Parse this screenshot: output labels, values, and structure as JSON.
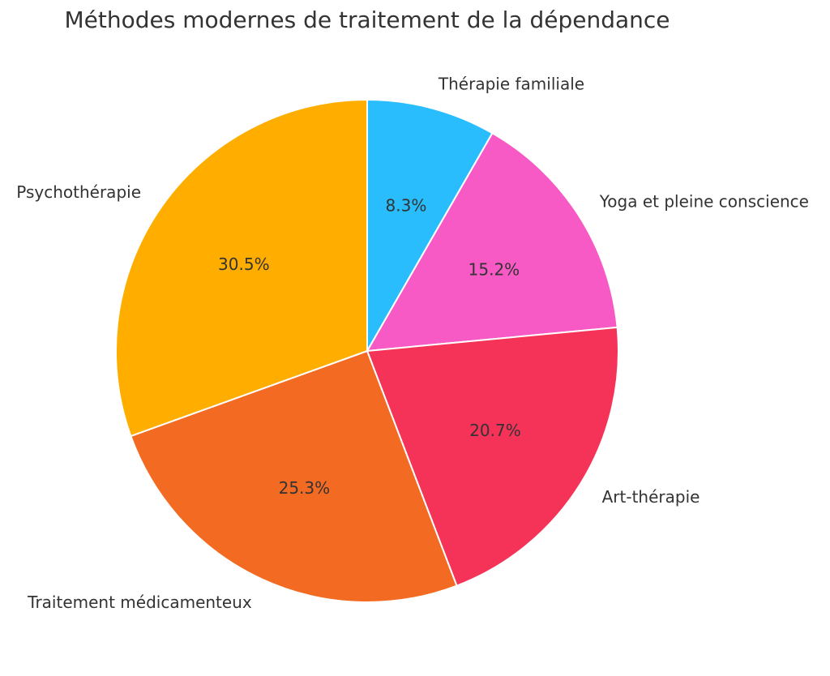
{
  "chart_data": {
    "type": "pie",
    "title": "Méthodes modernes de traitement de la dépendance",
    "start_angle_deg": 90,
    "direction": "clockwise",
    "slices": [
      {
        "label": "Thérapie familiale",
        "value": 8.3,
        "pct_label": "8.3%",
        "color": "#29BDFD"
      },
      {
        "label": "Yoga et pleine conscience",
        "value": 15.2,
        "pct_label": "15.2%",
        "color": "#F75AC5"
      },
      {
        "label": "Art-thérapie",
        "value": 20.7,
        "pct_label": "20.7%",
        "color": "#F53359"
      },
      {
        "label": "Traitement médicamenteux",
        "value": 25.3,
        "pct_label": "25.3%",
        "color": "#F36B23"
      },
      {
        "label": "Psychothérapie",
        "value": 30.5,
        "pct_label": "30.5%",
        "color": "#FFAE00"
      }
    ]
  }
}
